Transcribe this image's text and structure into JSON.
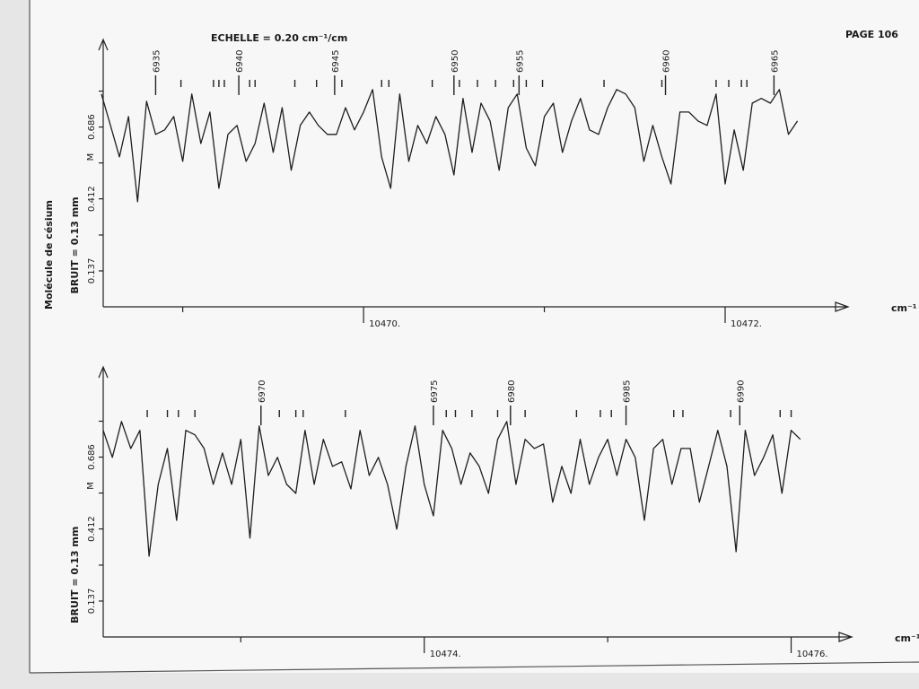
{
  "page": {
    "page_number": "PAGE 106",
    "scale": "ECHELLE = 0.20 cm⁻¹/cm",
    "molecule": "Molécule de césium"
  },
  "chart_data": [
    {
      "type": "line",
      "y_label": "BRUIT = 0.13 mm",
      "y_unit": "M",
      "x_label": "cm⁻¹",
      "xlim": [
        10468.56,
        10472.68
      ],
      "xticks": [
        {
          "value": 10470,
          "label": "10470."
        },
        {
          "value": 10472,
          "label": "10472."
        }
      ],
      "xminor": [
        10469,
        10471
      ],
      "ylim": [
        0,
        1.02
      ],
      "yticks": [
        0.686,
        0.412,
        0.137
      ],
      "yminor": [
        0.274,
        0.549,
        0.823
      ],
      "color": "#1e1e1e",
      "x": [
        10468.55,
        10468.6,
        10468.65,
        10468.7,
        10468.75,
        10468.8,
        10468.85,
        10468.9,
        10468.95,
        10469,
        10469.05,
        10469.1,
        10469.15,
        10469.2,
        10469.25,
        10469.3,
        10469.35,
        10469.4,
        10469.45,
        10469.5,
        10469.55,
        10469.6,
        10469.65,
        10469.7,
        10469.75,
        10469.8,
        10469.85,
        10469.9,
        10469.95,
        10470,
        10470.05,
        10470.1,
        10470.15,
        10470.2,
        10470.25,
        10470.3,
        10470.35,
        10470.4,
        10470.45,
        10470.5,
        10470.55,
        10470.6,
        10470.65,
        10470.7,
        10470.75,
        10470.8,
        10470.85,
        10470.9,
        10470.95,
        10471,
        10471.05,
        10471.1,
        10471.15,
        10471.2,
        10471.25,
        10471.3,
        10471.35,
        10471.4,
        10471.45,
        10471.5,
        10471.55,
        10471.6,
        10471.65,
        10471.7,
        10471.75,
        10471.8,
        10471.85,
        10471.9,
        10471.95,
        10472,
        10472.05,
        10472.1,
        10472.15,
        10472.2,
        10472.25,
        10472.3,
        10472.35,
        10472.4
      ],
      "values": [
        0.812,
        0.692,
        0.572,
        0.726,
        0.401,
        0.784,
        0.658,
        0.675,
        0.726,
        0.555,
        0.812,
        0.623,
        0.743,
        0.452,
        0.658,
        0.692,
        0.555,
        0.623,
        0.777,
        0.589,
        0.76,
        0.521,
        0.692,
        0.743,
        0.692,
        0.658,
        0.658,
        0.76,
        0.675,
        0.743,
        0.829,
        0.572,
        0.452,
        0.812,
        0.555,
        0.692,
        0.623,
        0.726,
        0.658,
        0.503,
        0.795,
        0.589,
        0.777,
        0.709,
        0.521,
        0.76,
        0.812,
        0.606,
        0.538,
        0.726,
        0.777,
        0.589,
        0.709,
        0.795,
        0.675,
        0.658,
        0.76,
        0.829,
        0.812,
        0.76,
        0.555,
        0.692,
        0.572,
        0.469,
        0.743,
        0.743,
        0.709,
        0.692,
        0.812,
        0.469,
        0.675,
        0.521,
        0.777,
        0.795,
        0.777,
        0.829,
        0.658,
        0.709
      ],
      "assignments": [
        {
          "x": 10468.85,
          "label": 6935
        },
        {
          "x": 10469.31,
          "label": 6940
        },
        {
          "x": 10469.84,
          "label": 6945
        },
        {
          "x": 10470.5,
          "label": 6950
        },
        {
          "x": 10470.86,
          "label": 6955
        },
        {
          "x": 10471.67,
          "label": 6960
        },
        {
          "x": 10472.27,
          "label": 6965
        }
      ],
      "marks": [
        10468.99,
        10469.17,
        10469.2,
        10469.23,
        10469.37,
        10469.4,
        10469.62,
        10469.74,
        10469.88,
        10470.1,
        10470.14,
        10470.38,
        10470.53,
        10470.63,
        10470.73,
        10470.83,
        10470.9,
        10470.99,
        10471.33,
        10471.65,
        10471.95,
        10472.02,
        10472.09,
        10472.12
      ]
    },
    {
      "type": "line",
      "y_label": "BRUIT = 0.13 mm",
      "y_unit": "M",
      "x_label": "cm⁻¹",
      "xlim": [
        10472.25,
        10476.33
      ],
      "xticks": [
        {
          "value": 10474,
          "label": "10474."
        },
        {
          "value": 10476,
          "label": "10476."
        }
      ],
      "xminor": [
        10473,
        10475
      ],
      "ylim": [
        0,
        1.03
      ],
      "yticks": [
        0.686,
        0.412,
        0.137
      ],
      "yminor": [
        0.274,
        0.549,
        0.823
      ],
      "color": "#1e1e1e",
      "x": [
        10472.25,
        10472.3,
        10472.35,
        10472.4,
        10472.45,
        10472.5,
        10472.55,
        10472.6,
        10472.65,
        10472.7,
        10472.75,
        10472.8,
        10472.85,
        10472.9,
        10472.95,
        10473,
        10473.05,
        10473.1,
        10473.15,
        10473.2,
        10473.25,
        10473.3,
        10473.35,
        10473.4,
        10473.45,
        10473.5,
        10473.55,
        10473.6,
        10473.65,
        10473.7,
        10473.75,
        10473.8,
        10473.85,
        10473.9,
        10473.95,
        10474,
        10474.05,
        10474.1,
        10474.15,
        10474.2,
        10474.25,
        10474.3,
        10474.35,
        10474.4,
        10474.45,
        10474.5,
        10474.55,
        10474.6,
        10474.65,
        10474.7,
        10474.75,
        10474.8,
        10474.85,
        10474.9,
        10474.95,
        10475,
        10475.05,
        10475.1,
        10475.15,
        10475.2,
        10475.25,
        10475.3,
        10475.35,
        10475.4,
        10475.45,
        10475.5,
        10475.55,
        10475.6,
        10475.65,
        10475.7,
        10475.75,
        10475.8,
        10475.85,
        10475.9,
        10475.95,
        10476,
        10476.05
      ],
      "values": [
        0.788,
        0.685,
        0.822,
        0.719,
        0.788,
        0.308,
        0.582,
        0.719,
        0.445,
        0.788,
        0.771,
        0.719,
        0.582,
        0.702,
        0.582,
        0.754,
        0.377,
        0.805,
        0.616,
        0.685,
        0.582,
        0.548,
        0.788,
        0.582,
        0.754,
        0.651,
        0.668,
        0.565,
        0.788,
        0.616,
        0.685,
        0.582,
        0.411,
        0.651,
        0.805,
        0.582,
        0.462,
        0.788,
        0.719,
        0.582,
        0.702,
        0.651,
        0.548,
        0.754,
        0.822,
        0.582,
        0.754,
        0.719,
        0.736,
        0.514,
        0.651,
        0.548,
        0.754,
        0.582,
        0.685,
        0.754,
        0.616,
        0.754,
        0.685,
        0.445,
        0.719,
        0.754,
        0.582,
        0.719,
        0.719,
        0.514,
        0.651,
        0.788,
        0.651,
        0.325,
        0.788,
        0.616,
        0.685,
        0.771,
        0.548,
        0.788,
        0.754
      ],
      "assignments": [
        {
          "x": 10473.11,
          "label": 6970
        },
        {
          "x": 10474.05,
          "label": 6975
        },
        {
          "x": 10474.47,
          "label": 6980
        },
        {
          "x": 10475.1,
          "label": 6985
        },
        {
          "x": 10475.72,
          "label": 6990
        }
      ],
      "marks": [
        10472.49,
        10472.6,
        10472.66,
        10472.75,
        10473.21,
        10473.3,
        10473.34,
        10473.57,
        10474.12,
        10474.17,
        10474.26,
        10474.4,
        10474.55,
        10474.83,
        10474.96,
        10475.02,
        10475.36,
        10475.41,
        10475.67,
        10475.94,
        10476
      ]
    }
  ]
}
